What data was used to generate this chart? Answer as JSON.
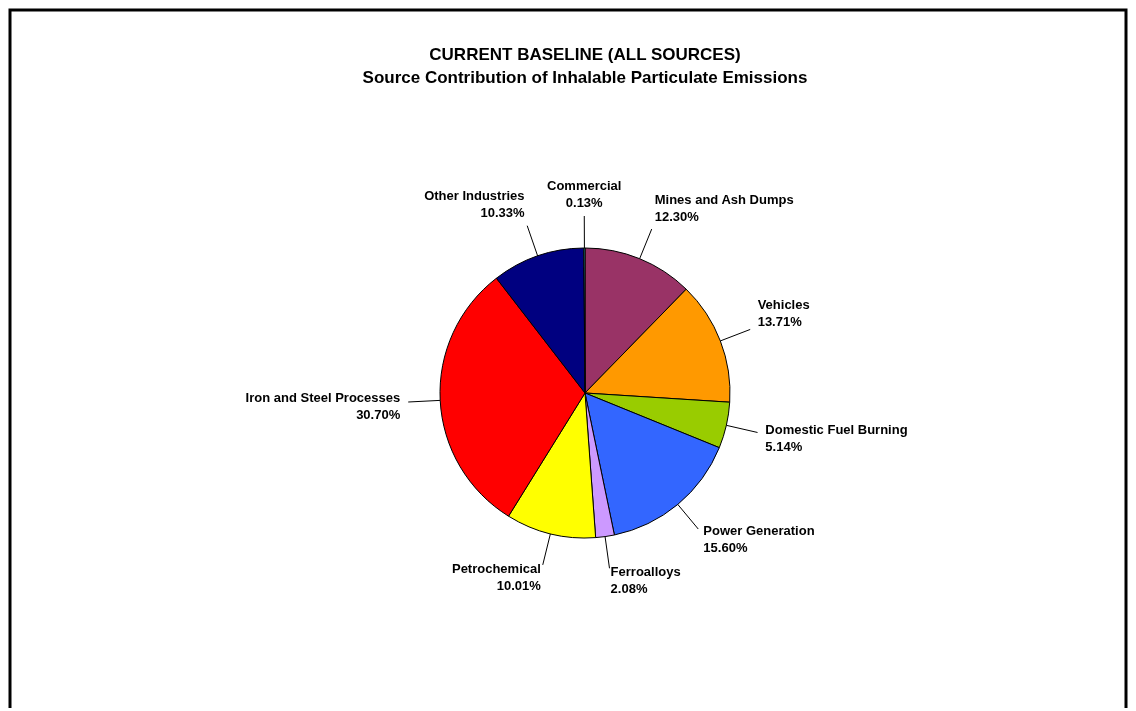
{
  "chart_data": {
    "type": "pie",
    "title": "CURRENT BASELINE (ALL SOURCES)",
    "subtitle": "Source Contribution of Inhalable Particulate Emissions",
    "categories": [
      "Mines and Ash Dumps",
      "Vehicles",
      "Domestic Fuel Burning",
      "Power Generation",
      "Ferroalloys",
      "Petrochemical",
      "Iron and Steel Processes",
      "Other Industries",
      "Commercial"
    ],
    "values": [
      12.3,
      13.71,
      5.14,
      15.6,
      2.08,
      10.01,
      30.7,
      10.33,
      0.13
    ],
    "value_labels": [
      "12.30%",
      "13.71%",
      "5.14%",
      "15.60%",
      "2.08%",
      "10.01%",
      "30.70%",
      "10.33%",
      "0.13%"
    ],
    "colors": [
      "#993366",
      "#ff9900",
      "#99cc00",
      "#3366ff",
      "#cc99ff",
      "#ffff00",
      "#ff0000",
      "#000080",
      "#33cccc"
    ]
  }
}
